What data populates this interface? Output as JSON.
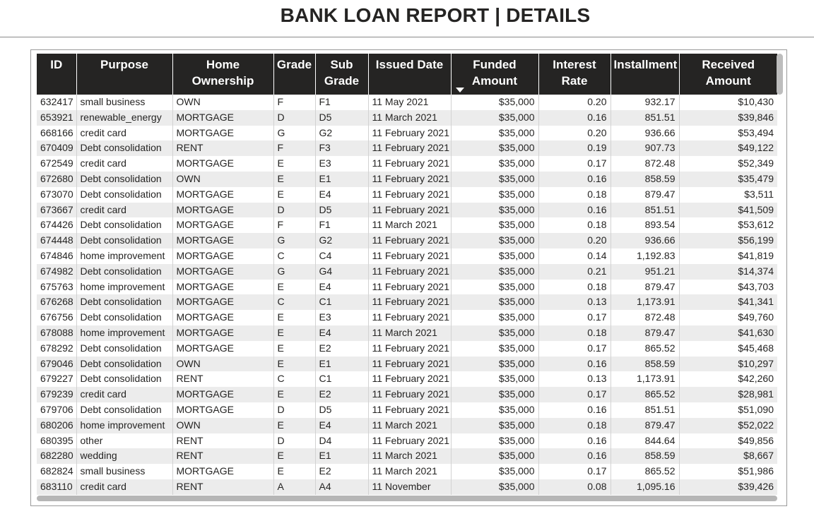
{
  "title": "BANK LOAN REPORT | DETAILS",
  "colors": {
    "header_bg": "#252423",
    "header_text": "#ffffff",
    "row_alt": "#ececec",
    "row": "#ffffff"
  },
  "table": {
    "columns": [
      {
        "lines": [
          "ID"
        ],
        "align": "l"
      },
      {
        "lines": [
          "Purpose"
        ],
        "align": "l"
      },
      {
        "lines": [
          "Home Ownership"
        ],
        "align": "l"
      },
      {
        "lines": [
          "Grade"
        ],
        "align": "l"
      },
      {
        "lines": [
          "Sub",
          "Grade"
        ],
        "align": "l"
      },
      {
        "lines": [
          "Issued Date"
        ],
        "align": "l"
      },
      {
        "lines": [
          "Funded",
          "Amount"
        ],
        "align": "r",
        "sorted": "descending"
      },
      {
        "lines": [
          "Interest",
          "Rate"
        ],
        "align": "r"
      },
      {
        "lines": [
          "Installment"
        ],
        "align": "r"
      },
      {
        "lines": [
          "Received",
          "Amount"
        ],
        "align": "r"
      }
    ],
    "rows": [
      [
        "632417",
        "small business",
        "OWN",
        "F",
        "F1",
        "11 May 2021",
        "$35,000",
        "0.20",
        "932.17",
        "$10,430"
      ],
      [
        "653921",
        "renewable_energy",
        "MORTGAGE",
        "D",
        "D5",
        "11 March 2021",
        "$35,000",
        "0.16",
        "851.51",
        "$39,846"
      ],
      [
        "668166",
        "credit card",
        "MORTGAGE",
        "G",
        "G2",
        "11 February 2021",
        "$35,000",
        "0.20",
        "936.66",
        "$53,494"
      ],
      [
        "670409",
        "Debt consolidation",
        "RENT",
        "F",
        "F3",
        "11 February 2021",
        "$35,000",
        "0.19",
        "907.73",
        "$49,122"
      ],
      [
        "672549",
        "credit card",
        "MORTGAGE",
        "E",
        "E3",
        "11 February 2021",
        "$35,000",
        "0.17",
        "872.48",
        "$52,349"
      ],
      [
        "672680",
        "Debt consolidation",
        "OWN",
        "E",
        "E1",
        "11 February 2021",
        "$35,000",
        "0.16",
        "858.59",
        "$35,479"
      ],
      [
        "673070",
        "Debt consolidation",
        "MORTGAGE",
        "E",
        "E4",
        "11 February 2021",
        "$35,000",
        "0.18",
        "879.47",
        "$3,511"
      ],
      [
        "673667",
        "credit card",
        "MORTGAGE",
        "D",
        "D5",
        "11 February 2021",
        "$35,000",
        "0.16",
        "851.51",
        "$41,509"
      ],
      [
        "674426",
        "Debt consolidation",
        "MORTGAGE",
        "F",
        "F1",
        "11 March 2021",
        "$35,000",
        "0.18",
        "893.54",
        "$53,612"
      ],
      [
        "674448",
        "Debt consolidation",
        "MORTGAGE",
        "G",
        "G2",
        "11 February 2021",
        "$35,000",
        "0.20",
        "936.66",
        "$56,199"
      ],
      [
        "674846",
        "home improvement",
        "MORTGAGE",
        "C",
        "C4",
        "11 February 2021",
        "$35,000",
        "0.14",
        "1,192.83",
        "$41,819"
      ],
      [
        "674982",
        "Debt consolidation",
        "MORTGAGE",
        "G",
        "G4",
        "11 February 2021",
        "$35,000",
        "0.21",
        "951.21",
        "$14,374"
      ],
      [
        "675763",
        "home improvement",
        "MORTGAGE",
        "E",
        "E4",
        "11 February 2021",
        "$35,000",
        "0.18",
        "879.47",
        "$43,703"
      ],
      [
        "676268",
        "Debt consolidation",
        "MORTGAGE",
        "C",
        "C1",
        "11 February 2021",
        "$35,000",
        "0.13",
        "1,173.91",
        "$41,341"
      ],
      [
        "676756",
        "Debt consolidation",
        "MORTGAGE",
        "E",
        "E3",
        "11 February 2021",
        "$35,000",
        "0.17",
        "872.48",
        "$49,760"
      ],
      [
        "678088",
        "home improvement",
        "MORTGAGE",
        "E",
        "E4",
        "11 March 2021",
        "$35,000",
        "0.18",
        "879.47",
        "$41,630"
      ],
      [
        "678292",
        "Debt consolidation",
        "MORTGAGE",
        "E",
        "E2",
        "11 February 2021",
        "$35,000",
        "0.17",
        "865.52",
        "$45,468"
      ],
      [
        "679046",
        "Debt consolidation",
        "OWN",
        "E",
        "E1",
        "11 February 2021",
        "$35,000",
        "0.16",
        "858.59",
        "$10,297"
      ],
      [
        "679227",
        "Debt consolidation",
        "RENT",
        "C",
        "C1",
        "11 February 2021",
        "$35,000",
        "0.13",
        "1,173.91",
        "$42,260"
      ],
      [
        "679239",
        "credit card",
        "MORTGAGE",
        "E",
        "E2",
        "11 February 2021",
        "$35,000",
        "0.17",
        "865.52",
        "$28,981"
      ],
      [
        "679706",
        "Debt consolidation",
        "MORTGAGE",
        "D",
        "D5",
        "11 February 2021",
        "$35,000",
        "0.16",
        "851.51",
        "$51,090"
      ],
      [
        "680206",
        "home improvement",
        "OWN",
        "E",
        "E4",
        "11 March 2021",
        "$35,000",
        "0.18",
        "879.47",
        "$52,022"
      ],
      [
        "680395",
        "other",
        "RENT",
        "D",
        "D4",
        "11 February 2021",
        "$35,000",
        "0.16",
        "844.64",
        "$49,856"
      ],
      [
        "682280",
        "wedding",
        "RENT",
        "E",
        "E1",
        "11 March 2021",
        "$35,000",
        "0.16",
        "858.59",
        "$8,667"
      ],
      [
        "682824",
        "small business",
        "MORTGAGE",
        "E",
        "E2",
        "11 March 2021",
        "$35,000",
        "0.17",
        "865.52",
        "$51,986"
      ],
      [
        "683110",
        "credit card",
        "RENT",
        "A",
        "A4",
        "11 November",
        "$35,000",
        "0.08",
        "1,095.16",
        "$39,426"
      ]
    ]
  }
}
